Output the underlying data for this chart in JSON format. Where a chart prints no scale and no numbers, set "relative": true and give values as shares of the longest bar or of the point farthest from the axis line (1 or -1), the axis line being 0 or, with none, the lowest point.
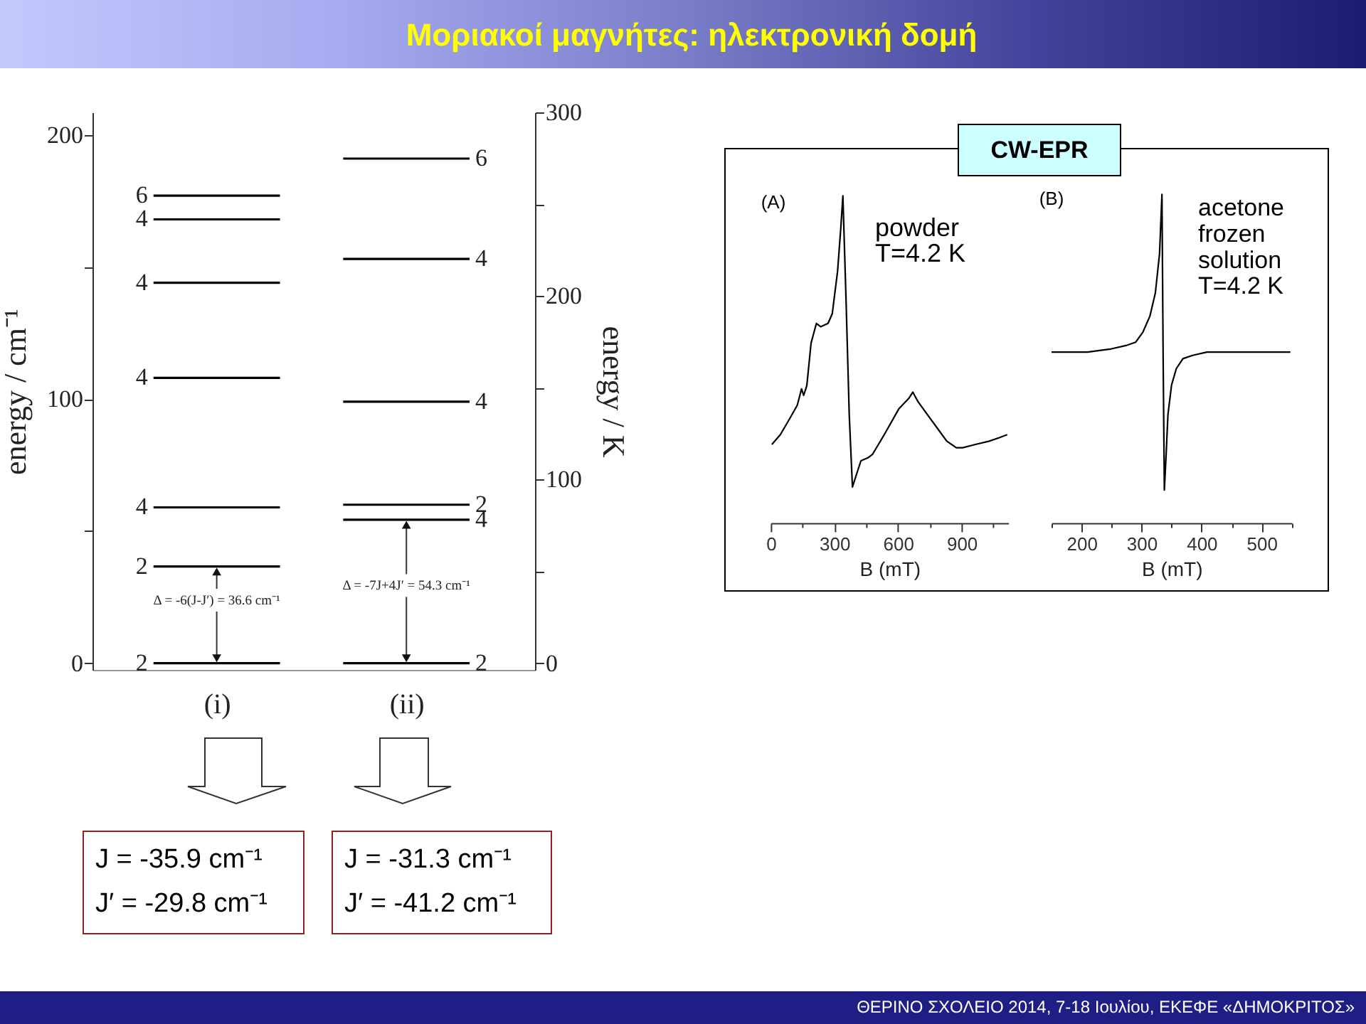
{
  "chart_data": [
    {
      "type": "line",
      "title": "Μοριακοί μαγνήτες: ηλεκτρονική δομή",
      "ylabel": "energy / cm⁻¹",
      "y2label": "energy / K",
      "categories": [
        null,
        "(i)",
        null,
        null,
        "(ii)",
        null
      ],
      "series": [
        {
          "values": [
            177,
            177,
            177,
            null,
            null,
            null
          ],
          "color": "#000000"
        },
        {
          "values": [
            168,
            168,
            168,
            null,
            null,
            null
          ],
          "color": "#000000"
        },
        {
          "values": [
            144,
            144,
            144,
            null,
            null,
            null
          ],
          "color": "#000000"
        },
        {
          "values": [
            108,
            108,
            108,
            null,
            null,
            null
          ],
          "color": "#000000"
        },
        {
          "values": [
            59,
            59,
            59,
            null,
            null,
            null
          ],
          "color": "#000000"
        },
        {
          "values": [
            36.6,
            36.6,
            36.6,
            null,
            null,
            null
          ],
          "color": "#000000"
        },
        {
          "values": [
            0,
            0,
            0,
            null,
            null,
            null
          ],
          "color": "#000000"
        },
        {
          "values": [
            null,
            null,
            null,
            191,
            191,
            191
          ],
          "color": "#000000"
        },
        {
          "values": [
            null,
            null,
            null,
            153,
            153,
            153
          ],
          "color": "#000000"
        },
        {
          "values": [
            null,
            null,
            null,
            99,
            99,
            99
          ],
          "color": "#000000"
        },
        {
          "values": [
            null,
            null,
            null,
            60,
            60,
            60
          ],
          "color": "#000000"
        },
        {
          "values": [
            null,
            null,
            null,
            54.3,
            54.3,
            54.3
          ],
          "color": "#000000"
        },
        {
          "values": [
            null,
            null,
            null,
            0,
            0,
            0
          ],
          "color": "#000000"
        }
      ],
      "ylim": [
        -2.5,
        208.5
      ],
      "yticks": [
        0,
        {
          "value": 50,
          "label": null
        },
        100,
        {
          "value": 150,
          "label": null
        },
        200
      ],
      "y2lim": [
        -3.6,
        300
      ],
      "y2ticks": [
        0,
        {
          "value": 50,
          "label": null
        },
        100,
        {
          "value": 150,
          "label": null
        },
        200,
        {
          "value": 250,
          "label": null
        },
        300
      ],
      "annotations": [
        {
          "text": "6",
          "x": "(i)",
          "y": 177
        },
        {
          "text": "4",
          "x": "(i)",
          "y": 168
        },
        {
          "text": "4",
          "x": "(i)",
          "y": 144
        },
        {
          "text": "4",
          "x": "(i)",
          "y": 108
        },
        {
          "text": "4",
          "x": "(i)",
          "y": 59
        },
        {
          "text": "2",
          "x": "(i)",
          "y": 36.6
        },
        {
          "text": "2",
          "x": "(i)",
          "y": 0
        },
        {
          "text": "6",
          "x": "(ii)",
          "y": 191
        },
        {
          "text": "4",
          "x": "(ii)",
          "y": 153
        },
        {
          "text": "4",
          "x": "(ii)",
          "y": 99
        },
        {
          "text": "2",
          "x": "(ii)",
          "y": 60
        },
        {
          "text": "4",
          "x": "(ii)",
          "y": 54.3
        },
        {
          "text": "2",
          "x": "(ii)",
          "y": 0
        },
        {
          "text": "Δ = -6(J-J′) = 36.6 cm⁻¹",
          "x": "(i)",
          "y": 36.6
        },
        {
          "text": "Δ = -7J+4J′ = 54.3 cm⁻¹",
          "x": "(ii)",
          "y": 54.3
        },
        "ΘΕΡΙΝΟ ΣΧΟΛΕΙΟ 2014, 7-18 Ιουλίου, ΕΚΕΦΕ «ΔΗΜΟΚΡΙΤΟΣ»"
      ]
    },
    {
      "type": "line",
      "title": "CW-EPR",
      "relative": true,
      "xlabel": "B (mT)",
      "xlim": [
        0,
        1120
      ],
      "xticks": [
        0,
        {
          "value": 150,
          "label": null
        },
        300,
        {
          "value": 450,
          "label": null
        },
        600,
        {
          "value": 750,
          "label": null
        },
        900,
        {
          "value": 1050,
          "label": null
        }
      ],
      "x": [
        5,
        45,
        90,
        125,
        145,
        155,
        170,
        190,
        215,
        235,
        270,
        290,
        315,
        330,
        340,
        355,
        370,
        385,
        405,
        425,
        460,
        480,
        535,
        605,
        650,
        670,
        695,
        740,
        785,
        830,
        875,
        905,
        965,
        1030,
        1075,
        1115
      ],
      "values": [
        0.24,
        0.27,
        0.32,
        0.36,
        0.41,
        0.39,
        0.42,
        0.55,
        0.61,
        0.6,
        0.61,
        0.64,
        0.77,
        0.9,
        1,
        0.68,
        0.33,
        0.11,
        0.15,
        0.19,
        0.2,
        0.21,
        0.27,
        0.35,
        0.38,
        0.4,
        0.37,
        0.33,
        0.29,
        0.25,
        0.23,
        0.23,
        0.24,
        0.25,
        0.26,
        0.27
      ],
      "color": "#000000",
      "annotations": [
        "(A)",
        "powder\nT=4.2 K"
      ]
    },
    {
      "type": "line",
      "relative": true,
      "xlabel": "B (mT)",
      "xlim": [
        150,
        550
      ],
      "xticks": [
        {
          "value": 150,
          "label": null
        },
        200,
        {
          "value": 250,
          "label": null
        },
        300,
        {
          "value": 350,
          "label": null
        },
        400,
        {
          "value": 450,
          "label": null
        },
        500,
        {
          "value": 550,
          "label": null
        }
      ],
      "x": [
        150,
        210,
        250,
        274,
        290,
        302,
        314,
        323,
        330,
        334,
        336,
        338,
        341,
        344,
        350,
        358,
        369,
        385,
        409,
        449,
        489,
        548
      ],
      "values": [
        0.52,
        0.52,
        0.53,
        0.54,
        0.55,
        0.58,
        0.63,
        0.7,
        0.82,
        1,
        0.5,
        0.1,
        0.21,
        0.33,
        0.42,
        0.47,
        0.5,
        0.51,
        0.52,
        0.52,
        0.52,
        0.52
      ],
      "color": "#000000",
      "annotations": [
        "(B)",
        "acetone\nfrozen\nsolution\nT=4.2 K"
      ]
    },
    {
      "type": "other",
      "annotations": [
        "J = -35.9 cm⁻¹",
        "J′ = -29.8 cm⁻¹"
      ]
    },
    {
      "type": "other",
      "annotations": [
        "J = -31.3 cm⁻¹",
        "J′ = -41.2 cm⁻¹"
      ]
    }
  ]
}
